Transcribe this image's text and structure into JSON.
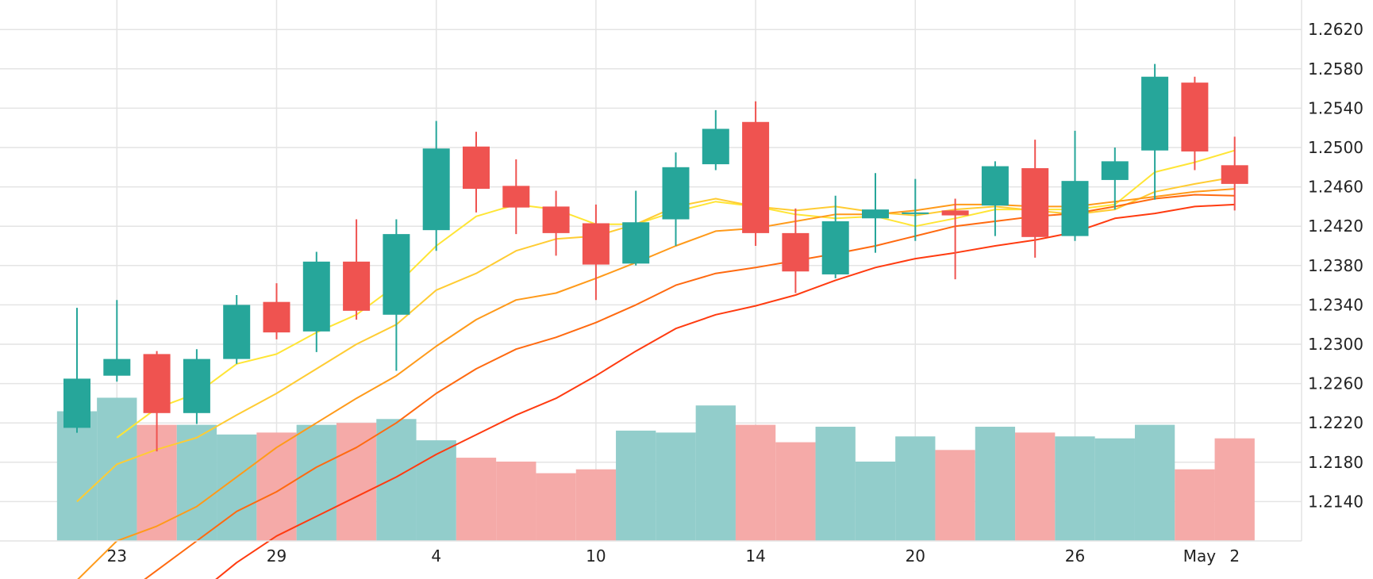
{
  "chart_data": {
    "type": "candlestick",
    "price_axis": {
      "min": 1.21,
      "max": 1.265,
      "ticks": [
        "1.2620",
        "1.2580",
        "1.2540",
        "1.2500",
        "1.2460",
        "1.2420",
        "1.2380",
        "1.2340",
        "1.2300",
        "1.2260",
        "1.2220",
        "1.2180",
        "1.2140"
      ]
    },
    "x_labels": [
      {
        "text": "23",
        "index": 1
      },
      {
        "text": "29",
        "index": 5
      },
      {
        "text": "4",
        "index": 9
      },
      {
        "text": "10",
        "index": 13
      },
      {
        "text": "14",
        "index": 17
      },
      {
        "text": "20",
        "index": 21
      },
      {
        "text": "26",
        "index": 25
      },
      {
        "text": "May",
        "index": 28
      },
      {
        "text": "2",
        "index": 29
      }
    ],
    "colors": {
      "up": "#26a69a",
      "down": "#ef5350",
      "up_volume": "#92cdcb",
      "down_volume": "#f5aaa8",
      "grid": "#e4e4e4",
      "ma": [
        "#ffe535",
        "#ffcc33",
        "#ff9a1a",
        "#ff6a10",
        "#ff3b10"
      ]
    },
    "candles": [
      {
        "open": 1.2215,
        "high": 1.2337,
        "low": 1.221,
        "close": 1.2265
      },
      {
        "open": 1.2268,
        "high": 1.2345,
        "low": 1.2262,
        "close": 1.2285
      },
      {
        "open": 1.229,
        "high": 1.2293,
        "low": 1.2191,
        "close": 1.223
      },
      {
        "open": 1.223,
        "high": 1.2295,
        "low": 1.2219,
        "close": 1.2285
      },
      {
        "open": 1.2285,
        "high": 1.235,
        "low": 1.228,
        "close": 1.234
      },
      {
        "open": 1.2343,
        "high": 1.2362,
        "low": 1.2305,
        "close": 1.2312
      },
      {
        "open": 1.2313,
        "high": 1.2394,
        "low": 1.2292,
        "close": 1.2384
      },
      {
        "open": 1.2384,
        "high": 1.2427,
        "low": 1.2325,
        "close": 1.2334
      },
      {
        "open": 1.233,
        "high": 1.2427,
        "low": 1.2273,
        "close": 1.2412
      },
      {
        "open": 1.2416,
        "high": 1.2527,
        "low": 1.2395,
        "close": 1.2499
      },
      {
        "open": 1.2501,
        "high": 1.2516,
        "low": 1.2434,
        "close": 1.2458
      },
      {
        "open": 1.2461,
        "high": 1.2488,
        "low": 1.2412,
        "close": 1.2439
      },
      {
        "open": 1.244,
        "high": 1.2456,
        "low": 1.239,
        "close": 1.2413
      },
      {
        "open": 1.2423,
        "high": 1.2442,
        "low": 1.2345,
        "close": 1.2381
      },
      {
        "open": 1.2382,
        "high": 1.2456,
        "low": 1.238,
        "close": 1.2424
      },
      {
        "open": 1.2427,
        "high": 1.2495,
        "low": 1.24,
        "close": 1.248
      },
      {
        "open": 1.2483,
        "high": 1.2538,
        "low": 1.2477,
        "close": 1.2519
      },
      {
        "open": 1.2526,
        "high": 1.2547,
        "low": 1.24,
        "close": 1.2413
      },
      {
        "open": 1.2413,
        "high": 1.2438,
        "low": 1.2352,
        "close": 1.2374
      },
      {
        "open": 1.2371,
        "high": 1.2451,
        "low": 1.2367,
        "close": 1.2425
      },
      {
        "open": 1.2428,
        "high": 1.2474,
        "low": 1.2393,
        "close": 1.2437
      },
      {
        "open": 1.2434,
        "high": 1.2468,
        "low": 1.2405,
        "close": 1.2434
      },
      {
        "open": 1.2436,
        "high": 1.2448,
        "low": 1.2366,
        "close": 1.2431
      },
      {
        "open": 1.2441,
        "high": 1.2486,
        "low": 1.241,
        "close": 1.2481
      },
      {
        "open": 1.2479,
        "high": 1.2508,
        "low": 1.2388,
        "close": 1.2409
      },
      {
        "open": 1.241,
        "high": 1.2517,
        "low": 1.2405,
        "close": 1.2466
      },
      {
        "open": 1.2467,
        "high": 1.25,
        "low": 1.2437,
        "close": 1.2486
      },
      {
        "open": 1.2497,
        "high": 1.2585,
        "low": 1.2447,
        "close": 1.2572
      },
      {
        "open": 1.2566,
        "high": 1.2572,
        "low": 1.2477,
        "close": 1.2496
      },
      {
        "open": 1.2482,
        "high": 1.2511,
        "low": 1.2436,
        "close": 1.2463
      }
    ],
    "volume": {
      "max": 100,
      "values": [
        67,
        74,
        60,
        60,
        55,
        56,
        60,
        61,
        63,
        52,
        43,
        41,
        35,
        37,
        57,
        56,
        70,
        60,
        51,
        59,
        41,
        54,
        47,
        59,
        56,
        54,
        53,
        60,
        37,
        53
      ],
      "direction": [
        "up",
        "up",
        "down",
        "up",
        "up",
        "down",
        "up",
        "down",
        "up",
        "up",
        "down",
        "down",
        "down",
        "down",
        "up",
        "up",
        "up",
        "down",
        "down",
        "up",
        "up",
        "up",
        "down",
        "up",
        "down",
        "up",
        "up",
        "up",
        "down",
        "down"
      ]
    },
    "moving_averages": [
      {
        "values": [
          null,
          1.2205,
          1.2235,
          1.225,
          1.228,
          1.229,
          1.2312,
          1.233,
          1.236,
          1.24,
          1.243,
          1.2442,
          1.2437,
          1.2422,
          1.2422,
          1.2435,
          1.2445,
          1.244,
          1.2432,
          1.2428,
          1.243,
          1.242,
          1.2428,
          1.2437,
          1.2437,
          1.2437,
          1.2442,
          1.2475,
          1.2485,
          1.2497
        ]
      },
      {
        "values": [
          1.214,
          1.2178,
          1.2193,
          1.2205,
          1.2228,
          1.225,
          1.2275,
          1.23,
          1.232,
          1.2355,
          1.2372,
          1.2395,
          1.2407,
          1.241,
          1.2422,
          1.244,
          1.2448,
          1.244,
          1.2436,
          1.244,
          1.2434,
          1.2431,
          1.2437,
          1.244,
          1.2436,
          1.2432,
          1.2437,
          1.2455,
          1.2463,
          1.247
        ]
      },
      {
        "values": [
          1.206,
          1.21,
          1.2115,
          1.2135,
          1.2165,
          1.2195,
          1.222,
          1.2245,
          1.2268,
          1.2298,
          1.2325,
          1.2345,
          1.2352,
          1.2367,
          1.2383,
          1.24,
          1.2415,
          1.2418,
          1.2425,
          1.2432,
          1.2432,
          1.2436,
          1.2442,
          1.2442,
          1.244,
          1.244,
          1.2445,
          1.245,
          1.2455,
          1.2458
        ]
      },
      {
        "values": [
          null,
          1.204,
          1.207,
          1.21,
          1.213,
          1.215,
          1.2175,
          1.2195,
          1.222,
          1.225,
          1.2275,
          1.2295,
          1.2307,
          1.2322,
          1.234,
          1.236,
          1.2372,
          1.2378,
          1.2385,
          1.2392,
          1.24,
          1.241,
          1.242,
          1.2425,
          1.243,
          1.2433,
          1.244,
          1.2448,
          1.2452,
          1.2451
        ]
      },
      {
        "values": [
          null,
          null,
          null,
          1.2045,
          1.2078,
          1.2105,
          1.2125,
          1.2145,
          1.2165,
          1.2188,
          1.2208,
          1.2228,
          1.2245,
          1.2268,
          1.2293,
          1.2316,
          1.233,
          1.2339,
          1.235,
          1.2365,
          1.2378,
          1.2387,
          1.2393,
          1.24,
          1.2406,
          1.2414,
          1.2428,
          1.2433,
          1.244,
          1.2442
        ]
      }
    ]
  }
}
